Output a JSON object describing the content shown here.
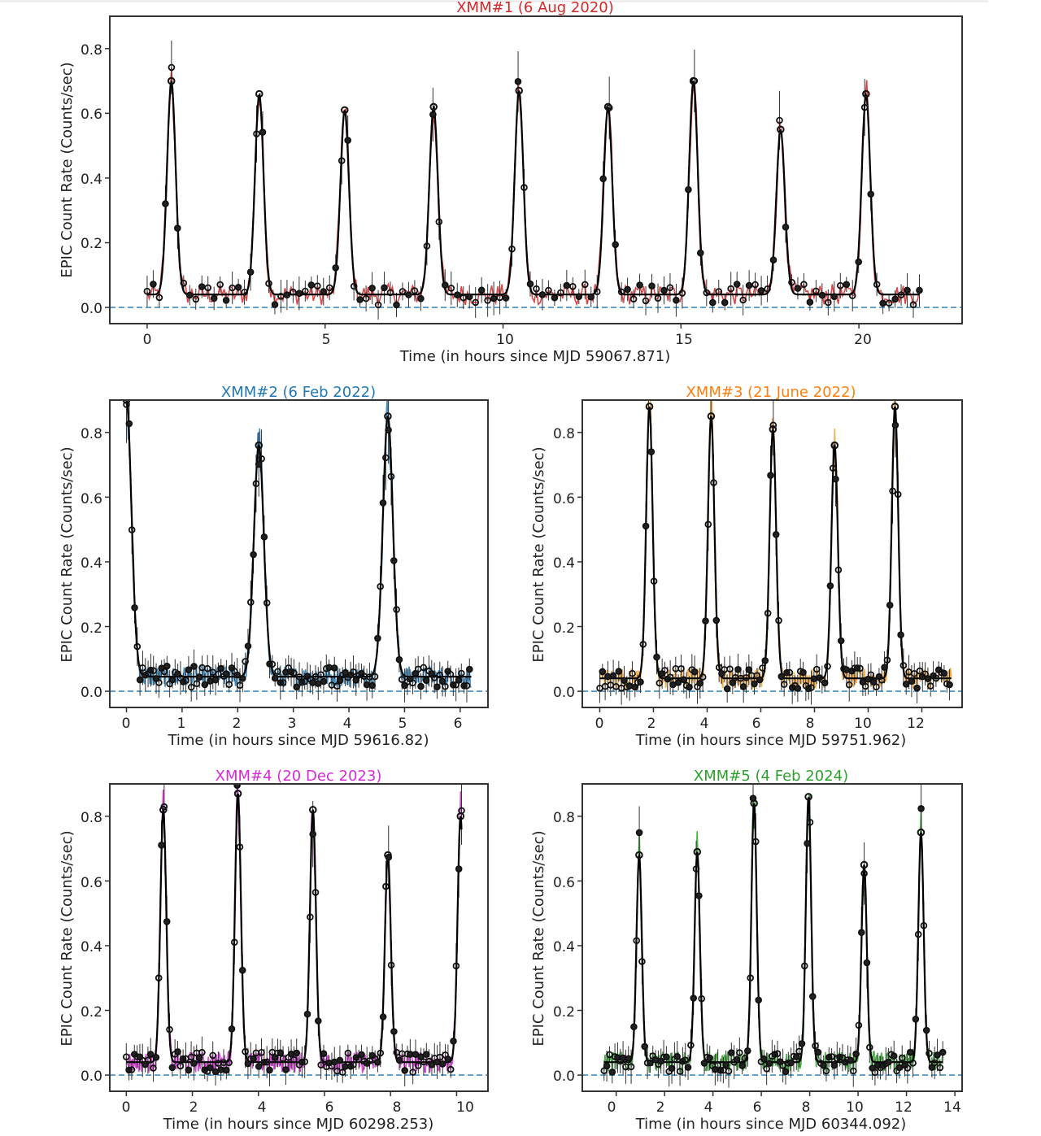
{
  "figure": {
    "common_ylabel": "EPIC Count Rate (Counts/sec)",
    "baseline_value": 0.0,
    "model_color": "#000000",
    "baseline_color": "#1f77b4"
  },
  "chart_data": [
    {
      "type": "line",
      "id": "xmm1",
      "title": "XMM#1 (6 Aug 2020)",
      "title_color": "#d62728",
      "color": "#d62728",
      "xlabel": "Time (in hours since MJD 59067.871)",
      "ylabel": "EPIC Count Rate (Counts/sec)",
      "xlim": [
        -1.05,
        22.9
      ],
      "ylim": [
        -0.05,
        0.9
      ],
      "xticks": [
        0,
        5,
        10,
        15,
        20
      ],
      "xtick_labels": [
        "0",
        "5",
        "10",
        "15",
        "20"
      ],
      "yticks": [
        0.0,
        0.2,
        0.4,
        0.6,
        0.8
      ],
      "ytick_labels": [
        "0.0",
        "0.2",
        "0.4",
        "0.6",
        "0.8"
      ],
      "data_range": [
        0,
        21.7
      ],
      "baseline_level": 0.04,
      "flare_width_h": 0.12,
      "flares": [
        {
          "t": 0.68,
          "peak": 0.7
        },
        {
          "t": 3.15,
          "peak": 0.66
        },
        {
          "t": 5.55,
          "peak": 0.61
        },
        {
          "t": 8.05,
          "peak": 0.62
        },
        {
          "t": 10.45,
          "peak": 0.67
        },
        {
          "t": 12.95,
          "peak": 0.62
        },
        {
          "t": 15.35,
          "peak": 0.7
        },
        {
          "t": 17.8,
          "peak": 0.55
        },
        {
          "t": 20.2,
          "peak": 0.66
        }
      ]
    },
    {
      "type": "line",
      "id": "xmm2",
      "title": "XMM#2 (6 Feb 2022)",
      "title_color": "#1f77b4",
      "color": "#1f77b4",
      "xlabel": "Time (in hours since MJD 59616.82)",
      "ylabel": "EPIC Count Rate (Counts/sec)",
      "xlim": [
        -0.3,
        6.5
      ],
      "ylim": [
        -0.05,
        0.9
      ],
      "xticks": [
        0,
        1,
        2,
        3,
        4,
        5,
        6
      ],
      "xtick_labels": [
        "0",
        "1",
        "2",
        "3",
        "4",
        "5",
        "6"
      ],
      "yticks": [
        0.0,
        0.2,
        0.4,
        0.6,
        0.8
      ],
      "ytick_labels": [
        "0.0",
        "0.2",
        "0.4",
        "0.6",
        "0.8"
      ],
      "data_range": [
        0,
        6.2
      ],
      "baseline_level": 0.045,
      "flare_width_h": 0.09,
      "flares": [
        {
          "t": 0.0,
          "peak": 0.9
        },
        {
          "t": 2.38,
          "peak": 0.76
        },
        {
          "t": 4.7,
          "peak": 0.85
        }
      ]
    },
    {
      "type": "line",
      "id": "xmm3",
      "title": "XMM#3 (21 June 2022)",
      "title_color": "#ff7f0e",
      "color": "#f0a030",
      "xlabel": "Time (in hours since MJD 59751.962)",
      "ylabel": "EPIC Count Rate (Counts/sec)",
      "xlim": [
        -0.65,
        13.5
      ],
      "ylim": [
        -0.05,
        0.9
      ],
      "xticks": [
        0,
        2,
        4,
        6,
        8,
        10,
        12
      ],
      "xtick_labels": [
        "0",
        "2",
        "4",
        "6",
        "8",
        "10",
        "12"
      ],
      "yticks": [
        0.0,
        0.2,
        0.4,
        0.6,
        0.8
      ],
      "ytick_labels": [
        "0.0",
        "0.2",
        "0.4",
        "0.6",
        "0.8"
      ],
      "data_range": [
        0,
        13.1
      ],
      "baseline_level": 0.04,
      "flare_width_h": 0.12,
      "flares": [
        {
          "t": 1.85,
          "peak": 0.88
        },
        {
          "t": 4.15,
          "peak": 0.85
        },
        {
          "t": 6.45,
          "peak": 0.81
        },
        {
          "t": 8.75,
          "peak": 0.76
        },
        {
          "t": 11.0,
          "peak": 0.88
        }
      ]
    },
    {
      "type": "line",
      "id": "xmm4",
      "title": "XMM#4 (20 Dec 2023)",
      "title_color": "#d62ad6",
      "color": "#d62ad6",
      "xlabel": "Time (in hours since MJD 60298.253)",
      "ylabel": "EPIC Count Rate (Counts/sec)",
      "xlim": [
        -0.5,
        10.95
      ],
      "ylim": [
        -0.05,
        0.9
      ],
      "xticks": [
        0,
        2,
        4,
        6,
        8,
        10
      ],
      "xtick_labels": [
        "0",
        "2",
        "4",
        "6",
        "8",
        "10"
      ],
      "yticks": [
        0.0,
        0.2,
        0.4,
        0.6,
        0.8
      ],
      "ytick_labels": [
        "0.0",
        "0.2",
        "0.4",
        "0.6",
        "0.8"
      ],
      "data_range": [
        0,
        10.15
      ],
      "baseline_level": 0.04,
      "flare_width_h": 0.09,
      "flares": [
        {
          "t": 1.12,
          "peak": 0.82
        },
        {
          "t": 3.38,
          "peak": 0.87
        },
        {
          "t": 5.65,
          "peak": 0.82
        },
        {
          "t": 7.92,
          "peak": 0.68
        },
        {
          "t": 10.12,
          "peak": 0.8
        }
      ]
    },
    {
      "type": "line",
      "id": "xmm5",
      "title": "XMM#5 (4 Feb 2024)",
      "title_color": "#2ca02c",
      "color": "#2ca02c",
      "xlabel": "Time (in hours since MJD 60344.092)",
      "ylabel": "EPIC Count Rate (Counts/sec)",
      "xlim": [
        -1.4,
        14.3
      ],
      "ylim": [
        -0.05,
        0.9
      ],
      "xticks": [
        0,
        2,
        4,
        6,
        8,
        10,
        12,
        14
      ],
      "xtick_labels": [
        "0",
        "2",
        "4",
        "6",
        "8",
        "10",
        "12",
        "14"
      ],
      "yticks": [
        0.0,
        0.2,
        0.4,
        0.6,
        0.8
      ],
      "ytick_labels": [
        "0.0",
        "0.2",
        "0.4",
        "0.6",
        "0.8"
      ],
      "data_range": [
        -0.5,
        13.5
      ],
      "baseline_level": 0.04,
      "flare_width_h": 0.11,
      "flares": [
        {
          "t": 0.95,
          "peak": 0.68
        },
        {
          "t": 3.35,
          "peak": 0.69
        },
        {
          "t": 5.7,
          "peak": 0.84
        },
        {
          "t": 7.95,
          "peak": 0.86
        },
        {
          "t": 10.25,
          "peak": 0.65
        },
        {
          "t": 12.6,
          "peak": 0.75
        }
      ]
    }
  ]
}
